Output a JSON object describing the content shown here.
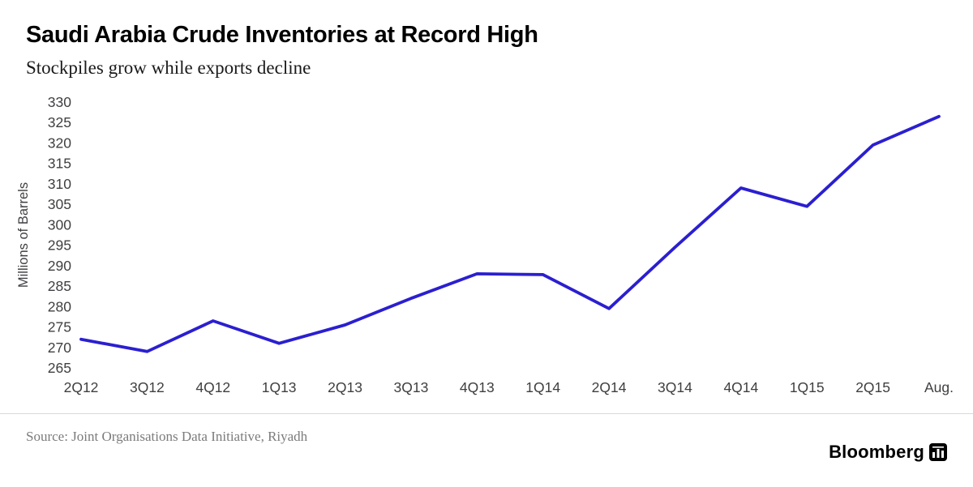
{
  "header": {
    "title": "Saudi Arabia Crude Inventories at Record High",
    "subtitle": "Stockpiles grow while exports decline"
  },
  "chart_data": {
    "type": "line",
    "title": "Saudi Arabia Crude Inventories at Record High",
    "subtitle": "Stockpiles grow while exports decline",
    "categories": [
      "2Q12",
      "3Q12",
      "4Q12",
      "1Q13",
      "2Q13",
      "3Q13",
      "4Q13",
      "1Q14",
      "2Q14",
      "3Q14",
      "4Q14",
      "1Q15",
      "2Q15",
      "Aug."
    ],
    "values": [
      272,
      269,
      276.5,
      271,
      275.5,
      282,
      288,
      287.8,
      279.5,
      294.5,
      309,
      304.5,
      319.5,
      326.5
    ],
    "xlabel": "",
    "ylabel": "Millions of Barrels",
    "ylim": [
      265,
      330
    ],
    "ytick_step": 5,
    "line_color": "#2b1fd0",
    "tick_color": "#3f3f42",
    "grid": false,
    "legend": "none"
  },
  "footer": {
    "source": "Source: Joint Organisations Data Initiative, Riyadh",
    "brand": "Bloomberg",
    "brand_icon": "bar-chart-logo-icon"
  }
}
